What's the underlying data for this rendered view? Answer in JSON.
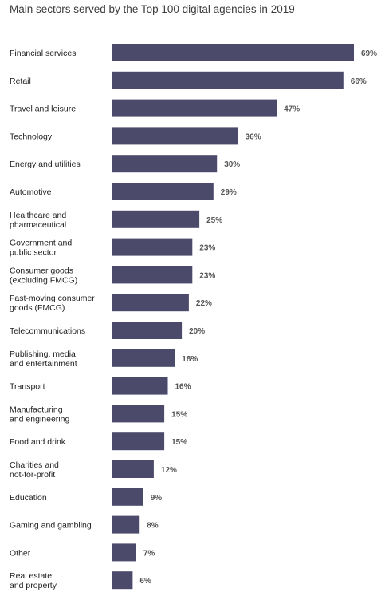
{
  "chart_data": {
    "type": "bar",
    "orientation": "horizontal",
    "title": "Main sectors served by the Top 100 digital agencies in 2019",
    "categories": [
      [
        "Financial services"
      ],
      [
        "Retail"
      ],
      [
        "Travel and leisure"
      ],
      [
        "Technology"
      ],
      [
        "Energy and utilities"
      ],
      [
        "Automotive"
      ],
      [
        "Healthcare and",
        "pharmaceutical"
      ],
      [
        "Government and",
        "public sector"
      ],
      [
        "Consumer goods",
        "(excluding FMCG)"
      ],
      [
        "Fast-moving consumer",
        "goods (FMCG)"
      ],
      [
        "Telecommunications"
      ],
      [
        "Publishing, media",
        "and entertainment"
      ],
      [
        "Transport"
      ],
      [
        "Manufacturing",
        "and engineering"
      ],
      [
        "Food and drink"
      ],
      [
        "Charities and",
        "not-for-profit"
      ],
      [
        "Education"
      ],
      [
        "Gaming and gambling"
      ],
      [
        "Other"
      ],
      [
        "Real estate",
        "and property"
      ]
    ],
    "values": [
      69,
      66,
      47,
      36,
      30,
      29,
      25,
      23,
      23,
      22,
      20,
      18,
      16,
      15,
      15,
      12,
      9,
      8,
      7,
      6
    ],
    "value_labels": [
      "69%",
      "66%",
      "47%",
      "36%",
      "30%",
      "29%",
      "25%",
      "23%",
      "23%",
      "22%",
      "20%",
      "18%",
      "16%",
      "15%",
      "15%",
      "12%",
      "9%",
      "8%",
      "7%",
      "6%"
    ],
    "unit": "%",
    "xlim": [
      0,
      69
    ],
    "grid": false,
    "legend": "none",
    "bar_color": "#4b4a6b"
  }
}
